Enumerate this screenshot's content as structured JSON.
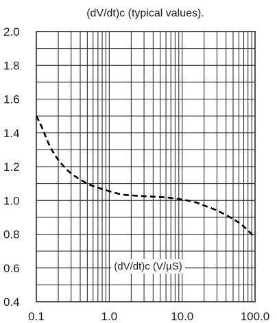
{
  "chart_data": {
    "type": "line",
    "title": "(dV/dt)c (typical values).",
    "xlabel": "(dV/dt)c (V/µS)",
    "ylabel": "",
    "xscale": "log",
    "xlim": [
      0.1,
      100
    ],
    "ylim": [
      0.4,
      2.0
    ],
    "x_tick_labels": [
      "0.1",
      "1.0",
      "10.0",
      "100.0"
    ],
    "y_tick_labels": [
      "0.4",
      "0.6",
      "0.8",
      "1.0",
      "1.2",
      "1.4",
      "1.6",
      "1.8",
      "2.0"
    ],
    "grid": true,
    "series": [
      {
        "line_style": "dashed",
        "color": "#000000",
        "x": [
          0.1,
          0.12,
          0.15,
          0.2,
          0.3,
          0.5,
          0.7,
          1.0,
          1.5,
          2.0,
          3.0,
          5.0,
          7.0,
          10.0,
          15.0,
          20.0,
          30.0,
          50.0,
          70.0,
          100.0
        ],
        "y": [
          1.5,
          1.43,
          1.33,
          1.24,
          1.16,
          1.1,
          1.075,
          1.055,
          1.035,
          1.03,
          1.025,
          1.02,
          1.015,
          1.005,
          0.99,
          0.97,
          0.94,
          0.89,
          0.845,
          0.78
        ]
      }
    ]
  }
}
